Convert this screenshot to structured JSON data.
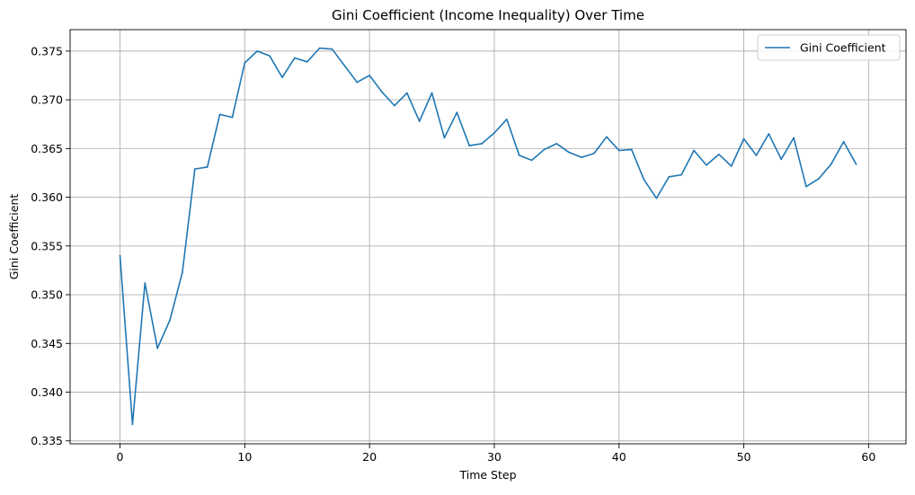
{
  "chart_data": {
    "type": "line",
    "title": "Gini Coefficient (Income Inequality) Over Time",
    "xlabel": "Time Step",
    "ylabel": "Gini Coefficient",
    "xlim": [
      -4.0,
      63.0
    ],
    "ylim": [
      0.3347,
      0.3772
    ],
    "x_ticks": [
      0,
      10,
      20,
      30,
      40,
      50,
      60
    ],
    "x_tick_labels": [
      "0",
      "10",
      "20",
      "30",
      "40",
      "50",
      "60"
    ],
    "y_ticks": [
      0.335,
      0.34,
      0.345,
      0.35,
      0.355,
      0.36,
      0.365,
      0.37,
      0.375
    ],
    "y_tick_labels": [
      "0.335",
      "0.340",
      "0.345",
      "0.350",
      "0.355",
      "0.360",
      "0.365",
      "0.370",
      "0.375"
    ],
    "grid": true,
    "legend": {
      "position": "top-right",
      "entries": [
        "Gini Coefficient"
      ]
    },
    "colors": {
      "line": "#1f77b4",
      "grid": "#b0b0b0",
      "axes": "#000000"
    },
    "series": [
      {
        "name": "Gini Coefficient",
        "x": [
          0,
          1,
          2,
          3,
          4,
          5,
          6,
          7,
          8,
          9,
          10,
          11,
          12,
          13,
          14,
          15,
          16,
          17,
          18,
          19,
          20,
          21,
          22,
          23,
          24,
          25,
          26,
          27,
          28,
          29,
          30,
          31,
          32,
          33,
          34,
          35,
          36,
          37,
          38,
          39,
          40,
          41,
          42,
          43,
          44,
          45,
          46,
          47,
          48,
          49,
          50,
          51,
          52,
          53,
          54,
          55,
          56,
          57,
          58,
          59
        ],
        "values": [
          0.354,
          0.3367,
          0.3512,
          0.3445,
          0.3474,
          0.3523,
          0.3629,
          0.3631,
          0.3685,
          0.3682,
          0.3738,
          0.375,
          0.3745,
          0.3723,
          0.3743,
          0.3739,
          0.3753,
          0.3752,
          0.3735,
          0.3718,
          0.3725,
          0.3708,
          0.3694,
          0.3707,
          0.3678,
          0.3707,
          0.3661,
          0.3687,
          0.3653,
          0.3655,
          0.3666,
          0.368,
          0.3643,
          0.3638,
          0.3649,
          0.3655,
          0.3646,
          0.3641,
          0.3645,
          0.3662,
          0.3648,
          0.3649,
          0.3618,
          0.3599,
          0.3621,
          0.3623,
          0.3648,
          0.3633,
          0.3644,
          0.3632,
          0.366,
          0.3643,
          0.3665,
          0.3639,
          0.3661,
          0.3611,
          0.3619,
          0.3634,
          0.3657,
          0.3634
        ]
      }
    ]
  }
}
